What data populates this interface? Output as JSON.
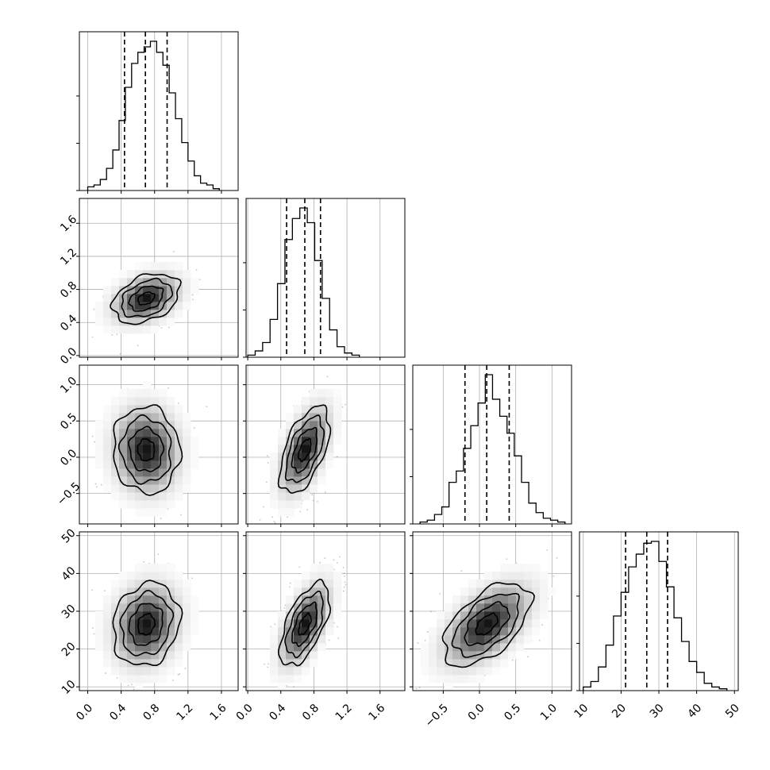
{
  "chart_data": {
    "type": "corner",
    "grid": true,
    "parameters": [
      {
        "id": "p0",
        "range": [
          -0.1,
          1.8
        ],
        "ticks": [
          0.0,
          0.4,
          0.8,
          1.2,
          1.6
        ],
        "tick_labels": [
          "0.0",
          "0.4",
          "0.8",
          "1.2",
          "1.6"
        ],
        "mean": 0.7,
        "sd": 0.2,
        "quantiles": [
          0.44,
          0.69,
          0.95
        ]
      },
      {
        "id": "p1",
        "range": [
          -0.02,
          1.9
        ],
        "ticks": [
          0.0,
          0.4,
          0.8,
          1.2,
          1.6
        ],
        "tick_labels": [
          "0.0",
          "0.4",
          "0.8",
          "1.2",
          "1.6"
        ],
        "mean": 0.69,
        "sd": 0.15,
        "quantiles": [
          0.47,
          0.69,
          0.88
        ]
      },
      {
        "id": "p2",
        "range": [
          -0.92,
          1.27
        ],
        "ticks": [
          -0.5,
          0.0,
          0.5,
          1.0
        ],
        "tick_labels": [
          "−0.5",
          "0.0",
          "0.5",
          "1.0"
        ],
        "mean": 0.1,
        "sd": 0.3,
        "quantiles": [
          -0.2,
          0.1,
          0.41
        ]
      },
      {
        "id": "p3",
        "range": [
          9,
          51
        ],
        "ticks": [
          10,
          20,
          30,
          40,
          50
        ],
        "tick_labels": [
          "10",
          "20",
          "30",
          "40",
          "50"
        ],
        "mean": 26.5,
        "sd": 5.5,
        "quantiles": [
          21.2,
          26.8,
          32.3
        ]
      }
    ],
    "histograms": [
      {
        "param": "p0",
        "bin_edges": [
          0.0,
          0.075,
          0.15,
          0.225,
          0.3,
          0.375,
          0.45,
          0.525,
          0.6,
          0.675,
          0.75,
          0.825,
          0.9,
          0.975,
          1.05,
          1.125,
          1.2,
          1.275,
          1.35,
          1.425,
          1.5,
          1.575
        ],
        "counts": [
          2,
          3,
          6,
          12,
          22,
          38,
          56,
          69,
          75,
          78,
          81,
          75,
          68,
          53,
          39,
          26,
          16,
          8,
          4,
          3,
          1
        ]
      },
      {
        "param": "p1",
        "bin_edges": [
          0.0,
          0.09,
          0.18,
          0.27,
          0.36,
          0.45,
          0.54,
          0.63,
          0.72,
          0.81,
          0.9,
          0.99,
          1.08,
          1.17,
          1.26,
          1.35
        ],
        "counts": [
          1,
          3,
          7,
          18,
          35,
          56,
          66,
          71,
          64,
          46,
          28,
          13,
          5,
          2,
          1
        ]
      },
      {
        "param": "p2",
        "bin_edges": [
          -0.82,
          -0.72,
          -0.62,
          -0.52,
          -0.42,
          -0.32,
          -0.22,
          -0.12,
          -0.02,
          0.08,
          0.18,
          0.28,
          0.38,
          0.48,
          0.58,
          0.68,
          0.78,
          0.88,
          0.98,
          1.08,
          1.18
        ],
        "counts": [
          1,
          2,
          5,
          9,
          22,
          28,
          40,
          52,
          64,
          79,
          66,
          57,
          48,
          36,
          22,
          11,
          6,
          3,
          2,
          1
        ]
      },
      {
        "param": "p3",
        "bin_edges": [
          10,
          12,
          14,
          16,
          18,
          20,
          22,
          24,
          26,
          28,
          30,
          32,
          34,
          36,
          38,
          40,
          42,
          44,
          46,
          48
        ],
        "counts": [
          2,
          5,
          13,
          25,
          41,
          54,
          68,
          75,
          81,
          82,
          71,
          57,
          40,
          27,
          16,
          10,
          4,
          2,
          1
        ]
      }
    ],
    "pairs": [
      {
        "x": "p0",
        "y": "p1",
        "rho": 0.35
      },
      {
        "x": "p0",
        "y": "p2",
        "rho": -0.05
      },
      {
        "x": "p1",
        "y": "p2",
        "rho": 0.55
      },
      {
        "x": "p0",
        "y": "p3",
        "rho": 0.15
      },
      {
        "x": "p1",
        "y": "p3",
        "rho": 0.6
      },
      {
        "x": "p2",
        "y": "p3",
        "rho": 0.55
      }
    ],
    "contour_levels_sigma": [
      0.5,
      1.0,
      1.5,
      2.0
    ]
  }
}
